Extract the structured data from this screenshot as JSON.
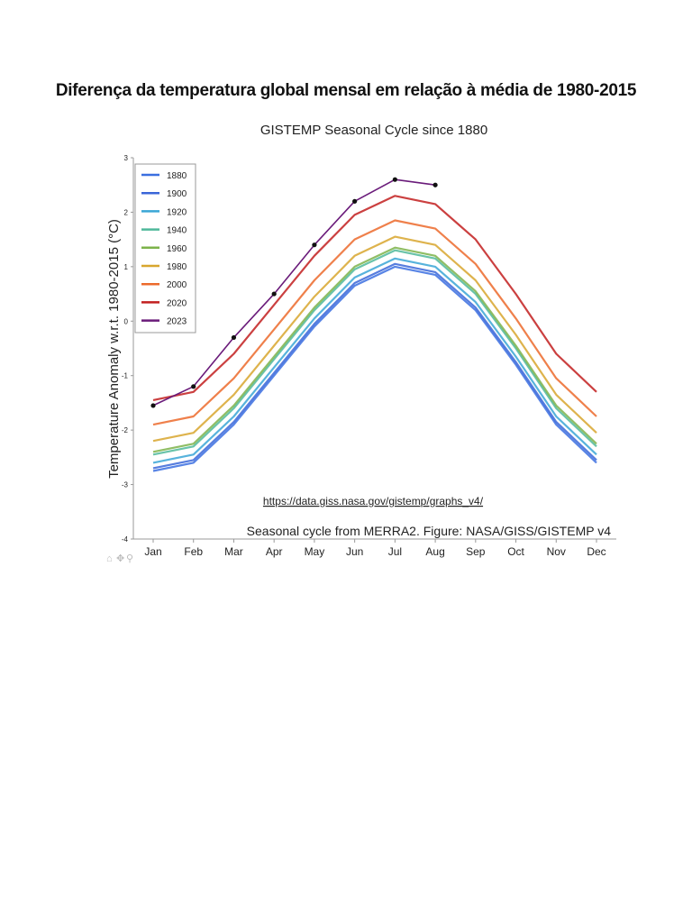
{
  "document": {
    "title": "Diferença da temperatura global mensal em relação à média de 1980-2015"
  },
  "chart_data": {
    "type": "line",
    "title": "GISTEMP Seasonal Cycle since 1880",
    "ylabel": "Temperature Anomaly w.r.t. 1980-2015 (°C)",
    "xlabel": "",
    "categories": [
      "Jan",
      "Feb",
      "Mar",
      "Apr",
      "May",
      "Jun",
      "Jul",
      "Aug",
      "Sep",
      "Oct",
      "Nov",
      "Dec"
    ],
    "yticks": [
      3,
      2,
      1,
      0,
      -1,
      -2,
      -3,
      -4
    ],
    "ylim": [
      -4,
      3
    ],
    "grid": false,
    "legend_position": "top-left",
    "legend": [
      {
        "label": "1880",
        "color": "#3b6fe0"
      },
      {
        "label": "1900",
        "color": "#3a66d8"
      },
      {
        "label": "1920",
        "color": "#3aa6d6"
      },
      {
        "label": "1940",
        "color": "#4fb89a"
      },
      {
        "label": "1960",
        "color": "#7cb34a"
      },
      {
        "label": "1980",
        "color": "#d8a62e"
      },
      {
        "label": "2000",
        "color": "#ec6a2c"
      },
      {
        "label": "2020",
        "color": "#c21f1f"
      },
      {
        "label": "2023",
        "color": "#6a1b7a"
      }
    ],
    "series": [
      {
        "name": "1880",
        "values": [
          -2.75,
          -2.6,
          -1.9,
          -1.0,
          -0.1,
          0.65,
          1.0,
          0.85,
          0.2,
          -0.8,
          -1.9,
          -2.6
        ]
      },
      {
        "name": "1900",
        "values": [
          -2.7,
          -2.55,
          -1.85,
          -0.95,
          -0.05,
          0.7,
          1.05,
          0.9,
          0.25,
          -0.75,
          -1.85,
          -2.55
        ]
      },
      {
        "name": "1920",
        "values": [
          -2.6,
          -2.45,
          -1.75,
          -0.85,
          0.05,
          0.8,
          1.15,
          1.0,
          0.35,
          -0.65,
          -1.75,
          -2.45
        ]
      },
      {
        "name": "1940",
        "values": [
          -2.45,
          -2.3,
          -1.6,
          -0.7,
          0.2,
          0.95,
          1.3,
          1.15,
          0.5,
          -0.5,
          -1.6,
          -2.3
        ]
      },
      {
        "name": "1960",
        "values": [
          -2.4,
          -2.25,
          -1.55,
          -0.65,
          0.25,
          1.0,
          1.35,
          1.2,
          0.55,
          -0.45,
          -1.55,
          -2.25
        ]
      },
      {
        "name": "1980",
        "values": [
          -2.2,
          -2.05,
          -1.35,
          -0.45,
          0.45,
          1.2,
          1.55,
          1.4,
          0.75,
          -0.25,
          -1.35,
          -2.05
        ]
      },
      {
        "name": "2000",
        "values": [
          -1.9,
          -1.75,
          -1.05,
          -0.15,
          0.75,
          1.5,
          1.85,
          1.7,
          1.05,
          0.05,
          -1.05,
          -1.75
        ]
      },
      {
        "name": "2020",
        "values": [
          -1.45,
          -1.3,
          -0.6,
          0.3,
          1.2,
          1.95,
          2.3,
          2.15,
          1.5,
          0.5,
          -0.6,
          -1.3
        ]
      },
      {
        "name": "2023",
        "values": [
          -1.55,
          -1.2,
          -0.3,
          0.5,
          1.4,
          2.2,
          2.6,
          2.5,
          null,
          null,
          null,
          null
        ]
      }
    ],
    "link": "https://data.giss.nasa.gov/gistemp/graphs_v4/",
    "credit": "Seasonal cycle from MERRA2. Figure: NASA/GISS/GISTEMP v4"
  }
}
